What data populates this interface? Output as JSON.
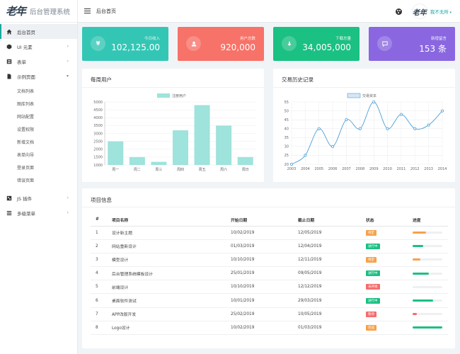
{
  "app": {
    "logo_mark": "老年",
    "logo_text": "后台管理系统"
  },
  "header": {
    "title": "后台首页",
    "user_name": "我不无所"
  },
  "sidebar": {
    "items": [
      {
        "label": "后台首页",
        "icon": "home-icon",
        "active": true
      },
      {
        "label": "UI 元素",
        "icon": "cube-icon",
        "caret": true
      },
      {
        "label": "表单",
        "icon": "form-icon",
        "caret": true
      },
      {
        "label": "示例页面",
        "icon": "file-icon",
        "caret": true,
        "expanded": true
      }
    ],
    "sub_items": [
      "文档列表",
      "图库列表",
      "网站配置",
      "设置权限",
      "新增文档",
      "表单向导",
      "登录页面",
      "错误页面"
    ],
    "bottom_items": [
      {
        "label": "JS 插件",
        "icon": "plugin-icon",
        "caret": true
      },
      {
        "label": "多级菜单",
        "icon": "menu-icon",
        "caret": true
      }
    ]
  },
  "stats": [
    {
      "label": "今日收入",
      "value": "102,125.00",
      "icon": "yen-icon",
      "color": "#34c6b5"
    },
    {
      "label": "用户总数",
      "value": "920,000",
      "icon": "user-icon",
      "color": "#f77268"
    },
    {
      "label": "下载总量",
      "value": "34,005,000",
      "icon": "download-icon",
      "color": "#1bc083"
    },
    {
      "label": "新增留言",
      "value": "153 条",
      "icon": "message-icon",
      "color": "#8a67e0"
    }
  ],
  "weekly": {
    "title": "每周用户",
    "chart_data": {
      "type": "bar",
      "legend": "注册用户",
      "categories": [
        "周一",
        "周二",
        "周三",
        "周四",
        "周五",
        "周六",
        "周日"
      ],
      "values": [
        2500,
        1500,
        1200,
        3200,
        4800,
        3500,
        1500
      ],
      "ylim": [
        1000,
        5000
      ],
      "yticks": [
        "5000",
        "4500",
        "4000",
        "3500",
        "3000",
        "2500",
        "2000",
        "1500",
        "1000"
      ],
      "color": "#9ee3dc"
    }
  },
  "history": {
    "title": "交易历史记录",
    "chart_data": {
      "type": "line",
      "legend": "交易资本",
      "x": [
        "2003",
        "2004",
        "2005",
        "2006",
        "2007",
        "2008",
        "2009",
        "2010",
        "2011",
        "2012",
        "2013",
        "2014"
      ],
      "values": [
        20,
        25,
        40,
        30,
        45,
        40,
        55,
        40,
        48,
        40,
        42,
        50
      ],
      "ylim": [
        20,
        55
      ],
      "yticks": [
        "55",
        "50",
        "45",
        "40",
        "35",
        "30",
        "25",
        "20"
      ],
      "color": "#4e9fd8"
    }
  },
  "projects": {
    "title": "项目信息",
    "headers": [
      "#",
      "项目名称",
      "开始日期",
      "截止日期",
      "状态",
      "进度"
    ],
    "rows": [
      {
        "idx": "1",
        "name": "设计新主题",
        "start": "10/02/2019",
        "end": "12/05/2019",
        "status": "待定",
        "status_color": "#f7a14b",
        "progress": 0.45,
        "progress_color": "#f7a14b"
      },
      {
        "idx": "2",
        "name": "网站重新设计",
        "start": "01/03/2019",
        "end": "12/04/2019",
        "status": "进行中",
        "status_color": "#1bc083",
        "progress": 0.35,
        "progress_color": "#1bc083"
      },
      {
        "idx": "3",
        "name": "模型设计",
        "start": "10/10/2019",
        "end": "12/11/2019",
        "status": "待定",
        "status_color": "#f7a14b",
        "progress": 0.25,
        "progress_color": "#f7a14b"
      },
      {
        "idx": "4",
        "name": "后台管理系统模板设计",
        "start": "25/01/2019",
        "end": "09/05/2019",
        "status": "进行中",
        "status_color": "#1bc083",
        "progress": 0.55,
        "progress_color": "#1bc083"
      },
      {
        "idx": "5",
        "name": "前端设计",
        "start": "10/10/2019",
        "end": "12/12/2019",
        "status": "未开始",
        "status_color": "#f56c6c",
        "progress": 0.0,
        "progress_color": "#f56c6c"
      },
      {
        "idx": "6",
        "name": "桌面软件测试",
        "start": "10/01/2019",
        "end": "29/03/2019",
        "status": "进行中",
        "status_color": "#1bc083",
        "progress": 0.7,
        "progress_color": "#1bc083"
      },
      {
        "idx": "7",
        "name": "APP改版开发",
        "start": "25/02/2019",
        "end": "10/05/2019",
        "status": "暂停",
        "status_color": "#f56c6c",
        "progress": 0.15,
        "progress_color": "#f56c6c"
      },
      {
        "idx": "8",
        "name": "Logo设计",
        "start": "10/02/2019",
        "end": "01/03/2019",
        "status": "完成",
        "status_color": "#f7a14b",
        "progress": 1.0,
        "progress_color": "#1bc083"
      }
    ]
  }
}
